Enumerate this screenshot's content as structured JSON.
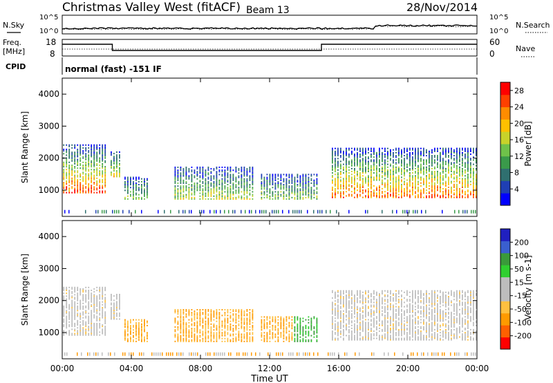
{
  "header": {
    "title": "Christmas Valley West (fitACF)",
    "beam": "Beam 13",
    "date": "28/Nov/2014"
  },
  "summary": {
    "nsky_label": "N.Sky",
    "nsearch_label": "N.Search",
    "scale_top": "10^5",
    "scale_bottom": "10^0",
    "freq_label": "Freq.",
    "freq_unit": "[MHz]",
    "freq_ticks": [
      "18",
      "8"
    ],
    "nave_label": "Nave",
    "nave_ticks": [
      "60",
      "0"
    ],
    "cpid_label": "CPID",
    "cpid_value": "normal (fast) -151 IF"
  },
  "colors": {
    "power": [
      "#0000ff",
      "#1f3fb4",
      "#2f6f6f",
      "#3a9a4a",
      "#6fc24a",
      "#c8d22a",
      "#ffc000",
      "#ff8c00",
      "#ff4000",
      "#ff0000"
    ],
    "velocity": [
      "#ff0000",
      "#ff6000",
      "#ff9a00",
      "#ffc040",
      "#c0c0c0",
      "#c0c0c0",
      "#2fcf2f",
      "#3a9a3a",
      "#3a5fcf",
      "#2020c0"
    ],
    "grey": "#bdbdbd"
  },
  "chart_data": [
    {
      "type": "heatmap",
      "panel": "power",
      "ylabel": "Slant Range [km]",
      "y_ticks": [
        "4000",
        "3000",
        "2000",
        "1000"
      ],
      "ylim": [
        180,
        4500
      ],
      "xlim": [
        0,
        24
      ],
      "colorbar_label": "Power [dB]",
      "colorbar_ticks": [
        "28",
        "24",
        "20",
        "16",
        "12",
        "8",
        "4"
      ],
      "colorbar_range": [
        0,
        30
      ]
    },
    {
      "type": "heatmap",
      "panel": "velocity",
      "ylabel": "Slant Range [km]",
      "y_ticks": [
        "4000",
        "3000",
        "2000",
        "1000"
      ],
      "ylim": [
        180,
        4500
      ],
      "xlim": [
        0,
        24
      ],
      "colorbar_label": "Velocity [m s-1]",
      "colorbar_ticks": [
        "200",
        "100",
        "50",
        "15",
        "-15",
        "-50",
        "-100",
        "-200"
      ],
      "colorbar_range": [
        -250,
        250
      ]
    }
  ],
  "x_axis": {
    "label": "Time UT",
    "ticks": [
      "00:00",
      "04:00",
      "08:00",
      "12:00",
      "16:00",
      "20:00",
      "00:00"
    ]
  }
}
